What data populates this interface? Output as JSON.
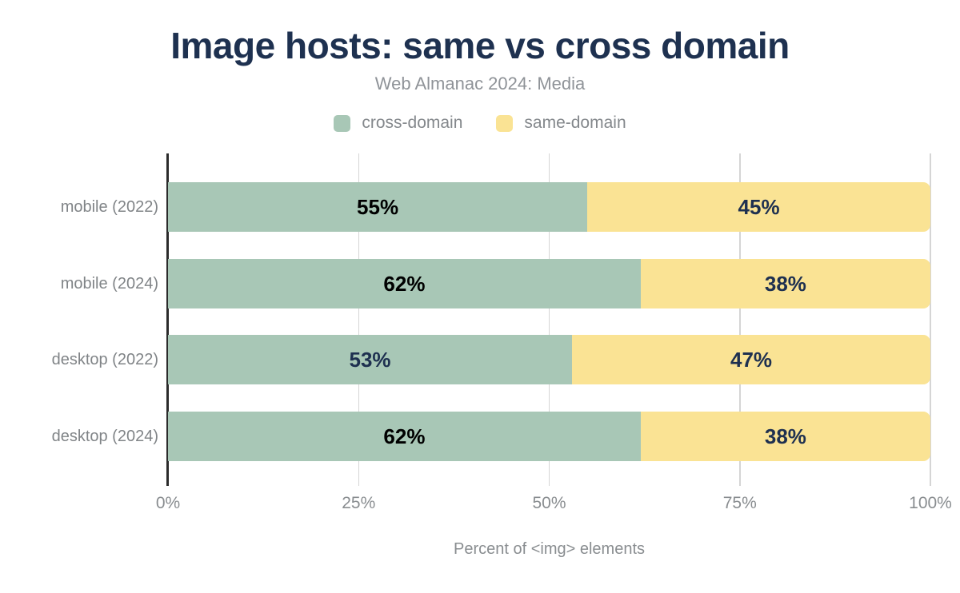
{
  "title": "Image hosts: same vs cross domain",
  "subtitle": "Web Almanac 2024: Media",
  "colors": {
    "title_text": "#1e3150",
    "subtitle_text": "#8f9398",
    "legend_text": "#84888c",
    "axis_text": "#898d90",
    "category_text": "#808487",
    "gridline": "#d5d5d5",
    "axis_line": "#2b2b2b",
    "navy_value_label": "#1e3050",
    "black_value_label": "#000000"
  },
  "chart_data": {
    "type": "bar",
    "stacked": true,
    "orientation": "horizontal",
    "title": "Image hosts: same vs cross domain",
    "subtitle": "Web Almanac 2024: Media",
    "categories": [
      "mobile (2022)",
      "mobile (2024)",
      "desktop (2022)",
      "desktop (2024)"
    ],
    "series": [
      {
        "name": "cross-domain",
        "color": "#a8c7b6",
        "values": [
          55,
          62,
          53,
          62
        ],
        "value_labels": [
          "55%",
          "62%",
          "53%",
          "62%"
        ],
        "label_colors": [
          "#000000",
          "#000000",
          "#1e3050",
          "#000000"
        ]
      },
      {
        "name": "same-domain",
        "color": "#fae394",
        "values": [
          45,
          38,
          47,
          38
        ],
        "value_labels": [
          "45%",
          "38%",
          "47%",
          "38%"
        ],
        "label_colors": [
          "#1e3050",
          "#1e3050",
          "#1e3050",
          "#1e3050"
        ]
      }
    ],
    "xlabel": "Percent of <img> elements",
    "ylabel": "",
    "xlim": [
      0,
      100
    ],
    "x_ticks": [
      {
        "label": "0%",
        "value": 0
      },
      {
        "label": "25%",
        "value": 25
      },
      {
        "label": "50%",
        "value": 50
      },
      {
        "label": "75%",
        "value": 75
      },
      {
        "label": "100%",
        "value": 100
      }
    ],
    "grid": "vertical",
    "legend_position": "top"
  }
}
